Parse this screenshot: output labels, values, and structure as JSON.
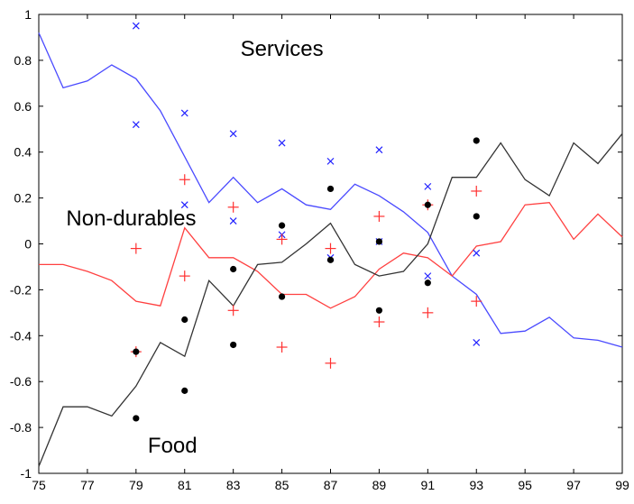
{
  "chart_data": {
    "type": "line",
    "title": "",
    "xlabel": "",
    "ylabel": "",
    "xlim": [
      75,
      99
    ],
    "ylim": [
      -1,
      1
    ],
    "grid": false,
    "x_ticks": [
      "75",
      "77",
      "79",
      "81",
      "83",
      "85",
      "87",
      "89",
      "91",
      "93",
      "95",
      "97",
      "99"
    ],
    "y_ticks": [
      "-1",
      "-0.8",
      "-0.6",
      "-0.4",
      "-0.2",
      "0",
      "0.2",
      "0.4",
      "0.6",
      "0.8",
      "1"
    ],
    "annotations": [
      {
        "text": "Services",
        "x": 85,
        "y": 0.82
      },
      {
        "text": "Non-durables",
        "x": 78.8,
        "y": 0.08
      },
      {
        "text": "Food",
        "x": 80.5,
        "y": -0.91
      }
    ],
    "series": [
      {
        "key": "services",
        "color": "#4a4aff",
        "style": "line",
        "x": [
          75,
          76,
          77,
          78,
          79,
          80,
          81,
          82,
          83,
          84,
          85,
          86,
          87,
          88,
          89,
          90,
          91,
          92,
          93,
          94,
          95,
          96,
          97,
          98,
          99
        ],
        "y": [
          0.92,
          0.68,
          0.71,
          0.78,
          0.72,
          0.58,
          0.38,
          0.18,
          0.29,
          0.18,
          0.24,
          0.17,
          0.15,
          0.26,
          0.21,
          0.14,
          0.05,
          -0.14,
          -0.22,
          -0.39,
          -0.38,
          -0.32,
          -0.41,
          -0.42,
          -0.45
        ]
      },
      {
        "key": "non_durables",
        "color": "#ff4040",
        "style": "line",
        "x": [
          75,
          76,
          77,
          78,
          79,
          80,
          81,
          82,
          83,
          84,
          85,
          86,
          87,
          88,
          89,
          90,
          91,
          92,
          93,
          94,
          95,
          96,
          97,
          98,
          99
        ],
        "y": [
          -0.09,
          -0.09,
          -0.12,
          -0.16,
          -0.25,
          -0.27,
          0.07,
          -0.06,
          -0.06,
          -0.12,
          -0.22,
          -0.22,
          -0.28,
          -0.23,
          -0.11,
          -0.04,
          -0.06,
          -0.14,
          -0.01,
          0.01,
          0.17,
          0.18,
          0.02,
          0.13,
          0.03
        ]
      },
      {
        "key": "food",
        "color": "#333333",
        "style": "line",
        "x": [
          75,
          76,
          77,
          78,
          79,
          80,
          81,
          82,
          83,
          84,
          85,
          86,
          87,
          88,
          89,
          90,
          91,
          92,
          93,
          94,
          95,
          96,
          97,
          98,
          99
        ],
        "y": [
          -0.97,
          -0.71,
          -0.71,
          -0.75,
          -0.62,
          -0.43,
          -0.49,
          -0.16,
          -0.27,
          -0.09,
          -0.08,
          0,
          0.09,
          -0.09,
          -0.14,
          -0.12,
          0,
          0.29,
          0.29,
          0.44,
          0.28,
          0.21,
          0.44,
          0.35,
          0.48
        ]
      },
      {
        "key": "services_points",
        "color": "#2020ff",
        "style": "x",
        "x": [
          79,
          79,
          81,
          81,
          83,
          83,
          85,
          85,
          87,
          87,
          89,
          89,
          91,
          91,
          93,
          93
        ],
        "y": [
          0.95,
          0.52,
          0.57,
          0.17,
          0.48,
          0.1,
          0.44,
          0.04,
          0.36,
          -0.06,
          0.41,
          0.01,
          0.25,
          -0.14,
          -0.04,
          -0.43
        ]
      },
      {
        "key": "non_durables_points",
        "color": "#ff3030",
        "style": "plus",
        "x": [
          79,
          79,
          81,
          81,
          83,
          83,
          85,
          85,
          87,
          87,
          89,
          89,
          91,
          91,
          93,
          93
        ],
        "y": [
          -0.02,
          -0.47,
          0.28,
          -0.14,
          0.16,
          -0.29,
          0.02,
          -0.45,
          -0.02,
          -0.52,
          0.12,
          -0.34,
          0.17,
          -0.3,
          0.23,
          -0.25
        ]
      },
      {
        "key": "food_points",
        "color": "#000000",
        "style": "dot",
        "x": [
          79,
          79,
          81,
          81,
          83,
          83,
          85,
          85,
          87,
          87,
          89,
          89,
          91,
          91,
          93,
          93
        ],
        "y": [
          -0.47,
          -0.76,
          -0.33,
          -0.64,
          -0.11,
          -0.44,
          0.08,
          -0.23,
          0.24,
          -0.07,
          0.01,
          -0.29,
          0.17,
          -0.17,
          0.45,
          0.12
        ]
      }
    ]
  }
}
